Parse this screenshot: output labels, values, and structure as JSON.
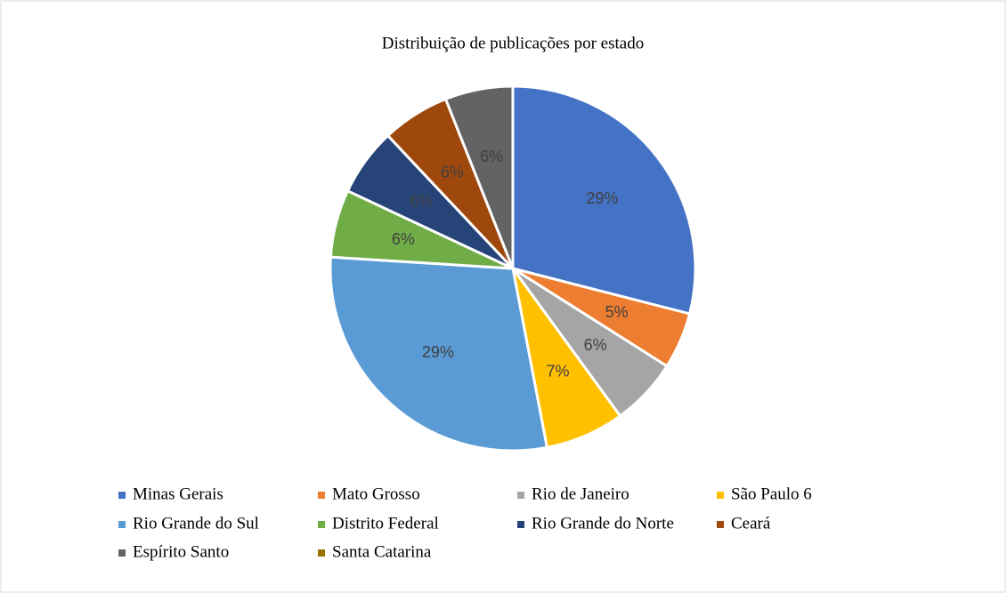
{
  "chart_data": {
    "type": "pie",
    "title": "Distribuição de publicações por estado",
    "categories": [
      "Minas Gerais",
      "Mato Grosso",
      "Rio de Janeiro",
      "São Paulo 6",
      "Rio Grande do Sul",
      "Distrito Federal",
      "Rio Grande do Norte",
      "Ceará",
      "Espírito Santo",
      "Santa Catarina"
    ],
    "values": [
      29,
      5,
      6,
      7,
      29,
      6,
      6,
      6,
      6,
      null
    ],
    "value_labels": [
      "29%",
      "5%",
      "6%",
      "7%",
      "29%",
      "6%",
      "6%",
      "6%",
      "6%",
      null
    ],
    "colors": [
      "#4472c4",
      "#ed7d31",
      "#a5a5a5",
      "#ffc000",
      "#5b9bd5",
      "#70ad47",
      "#264478",
      "#9e480e",
      "#636363",
      "#997300"
    ],
    "legend": "bottom"
  }
}
